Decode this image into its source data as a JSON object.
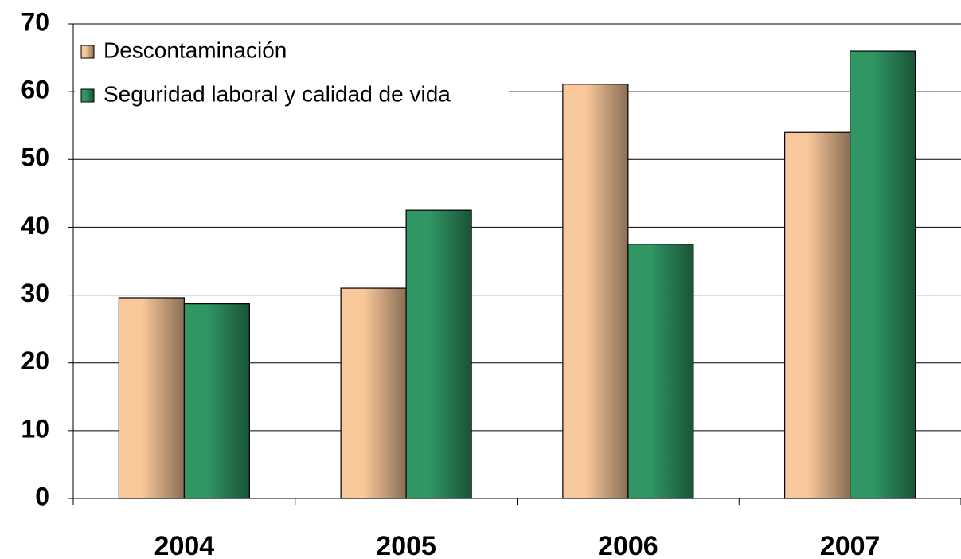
{
  "chart_data": {
    "type": "bar",
    "categories": [
      "2004",
      "2005",
      "2006",
      "2007"
    ],
    "series": [
      {
        "name": "Descontaminación",
        "color": "#f9c89a",
        "values": [
          29.6,
          31.0,
          61.1,
          54.0
        ]
      },
      {
        "name": "Seguridad laboral y calidad de vida",
        "color": "#2f9664",
        "values": [
          28.7,
          42.5,
          37.5,
          66.0
        ]
      }
    ],
    "ylim": [
      0,
      70
    ],
    "yticks": [
      0,
      10,
      20,
      30,
      40,
      50,
      60,
      70
    ],
    "grid": true,
    "legend": "upper left"
  }
}
